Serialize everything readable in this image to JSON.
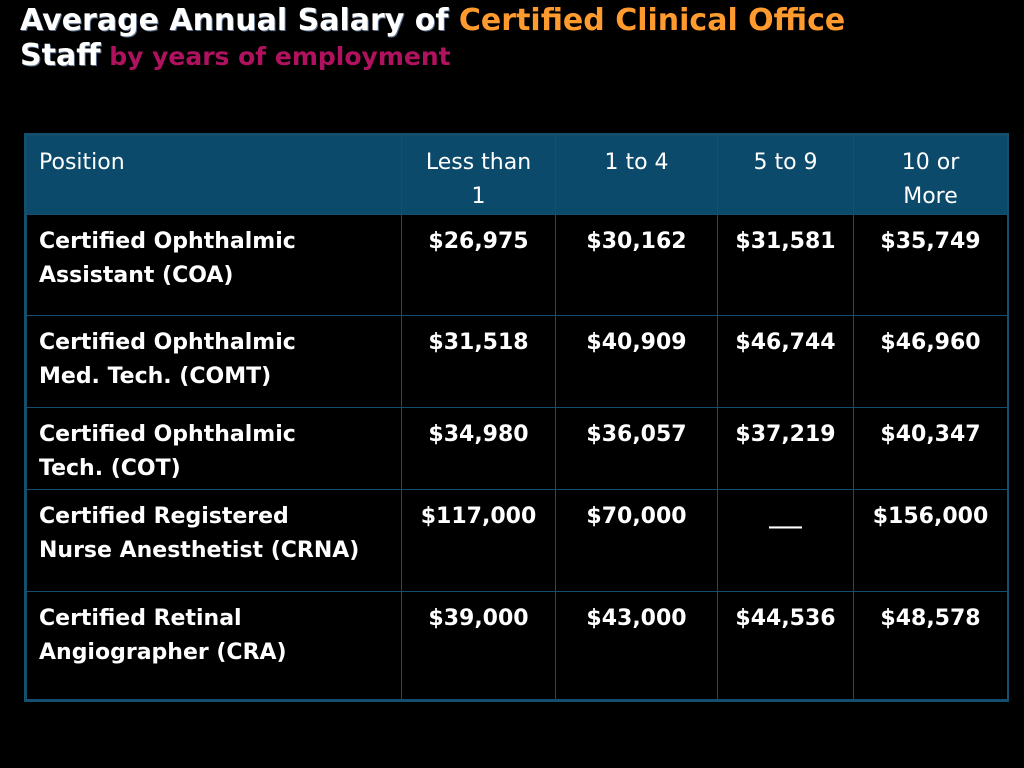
{
  "title": {
    "part1": "Average Annual Salary of ",
    "part2": "Certified Clinical Office",
    "part3": "Staff",
    "part4": " by years of employment"
  },
  "colors": {
    "title_white": "#ffffff",
    "title_orange": "#ff9a2e",
    "subtitle_purple": "#b0125f",
    "header_bg": "#0b4a6b",
    "border": "#14506e",
    "background": "#000000"
  },
  "table": {
    "headers": [
      "Position",
      "Less than 1",
      "1 to 4",
      "5 to 9",
      "10 or More"
    ],
    "header_lines": [
      [
        "Position"
      ],
      [
        "Less than",
        "1"
      ],
      [
        "1 to 4"
      ],
      [
        "5 to 9"
      ],
      [
        "10 or",
        "More"
      ]
    ],
    "rows": [
      {
        "position_lines": [
          "Certified Ophthalmic",
          "Assistant (COA)"
        ],
        "values": [
          "$26,975",
          "$30,162",
          "$31,581",
          "$35,749"
        ]
      },
      {
        "position_lines": [
          "Certified Ophthalmic",
          "Med. Tech. (COMT)"
        ],
        "values": [
          "$31,518",
          "$40,909",
          "$46,744",
          "$46,960"
        ]
      },
      {
        "position_lines": [
          "Certified Ophthalmic",
          "Tech. (COT)"
        ],
        "values": [
          "$34,980",
          "$36,057",
          "$37,219",
          "$40,347"
        ]
      },
      {
        "position_lines": [
          "Certified Registered",
          "Nurse Anesthetist (CRNA)"
        ],
        "values": [
          "$117,000",
          "$70,000",
          "___",
          "$156,000"
        ]
      },
      {
        "position_lines": [
          "Certified Retinal",
          "Angiographer (CRA)"
        ],
        "values": [
          "$39,000",
          "$43,000",
          "$44,536",
          "$48,578"
        ]
      }
    ]
  }
}
